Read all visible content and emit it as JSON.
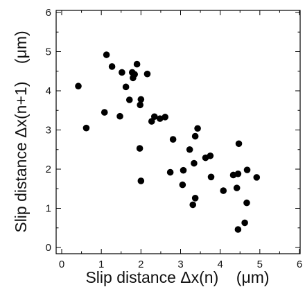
{
  "chart_data": {
    "type": "scatter",
    "title": "",
    "xlabel": "Slip distance Δx(n)    (μm)",
    "ylabel": "Slip distance Δx(n+1)    (μm)",
    "xlim": [
      0,
      6
    ],
    "ylim": [
      0,
      6
    ],
    "xticks": [
      "0",
      "1",
      "2",
      "3",
      "4",
      "5",
      "6"
    ],
    "yticks": [
      "0",
      "1",
      "2",
      "3",
      "4",
      "5",
      "6"
    ],
    "grid": false,
    "marker_color": "#000000",
    "series": [
      {
        "points": [
          [
            0.42,
            4.12
          ],
          [
            0.62,
            3.05
          ],
          [
            1.08,
            3.45
          ],
          [
            1.13,
            4.92
          ],
          [
            1.27,
            4.62
          ],
          [
            1.47,
            3.35
          ],
          [
            1.52,
            4.47
          ],
          [
            1.62,
            4.1
          ],
          [
            1.71,
            3.77
          ],
          [
            1.78,
            4.47
          ],
          [
            1.8,
            4.33
          ],
          [
            1.84,
            4.42
          ],
          [
            1.9,
            4.68
          ],
          [
            1.98,
            3.64
          ],
          [
            2.0,
            3.78
          ],
          [
            1.97,
            2.53
          ],
          [
            2.0,
            1.7
          ],
          [
            2.16,
            4.43
          ],
          [
            2.27,
            3.22
          ],
          [
            2.34,
            3.34
          ],
          [
            2.48,
            3.29
          ],
          [
            2.61,
            3.33
          ],
          [
            2.74,
            1.92
          ],
          [
            2.81,
            2.76
          ],
          [
            3.05,
            1.6
          ],
          [
            3.07,
            1.97
          ],
          [
            3.23,
            2.5
          ],
          [
            3.31,
            1.09
          ],
          [
            3.34,
            2.15
          ],
          [
            3.37,
            1.26
          ],
          [
            3.37,
            2.84
          ],
          [
            3.43,
            3.04
          ],
          [
            3.63,
            2.29
          ],
          [
            3.75,
            2.34
          ],
          [
            3.77,
            1.8
          ],
          [
            4.08,
            1.45
          ],
          [
            4.33,
            1.85
          ],
          [
            4.42,
            1.52
          ],
          [
            4.45,
            1.88
          ],
          [
            4.47,
            2.65
          ],
          [
            4.45,
            0.46
          ],
          [
            4.62,
            0.63
          ],
          [
            4.67,
            1.14
          ],
          [
            4.68,
            1.98
          ],
          [
            4.92,
            1.79
          ]
        ]
      }
    ]
  }
}
